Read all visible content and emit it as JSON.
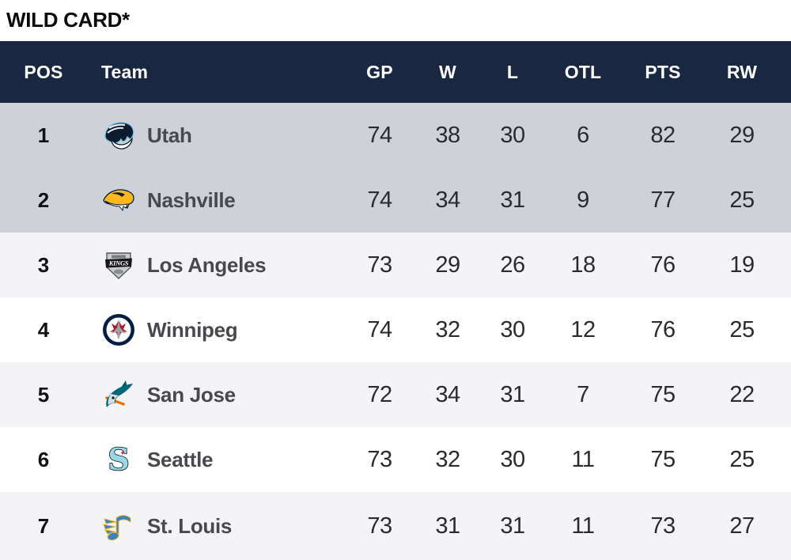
{
  "title": "WILD CARD*",
  "colors": {
    "header_bg": "#1a2740",
    "highlight_row_bg": "#ced2d8",
    "zebra_row_bg": "#f4f3f5",
    "header_text": "#ffffff",
    "team_text": "#47494c",
    "number_text": "#2b2b2d"
  },
  "table": {
    "columns": [
      "POS",
      "Team",
      "GP",
      "W",
      "L",
      "OTL",
      "PTS",
      "RW"
    ],
    "rows": [
      {
        "pos": "1",
        "team": "Utah",
        "logo": "utah-mammoth-logo",
        "gp": "74",
        "w": "38",
        "l": "30",
        "otl": "6",
        "pts": "82",
        "rw": "29",
        "highlighted": true
      },
      {
        "pos": "2",
        "team": "Nashville",
        "logo": "nashville-predators-logo",
        "gp": "74",
        "w": "34",
        "l": "31",
        "otl": "9",
        "pts": "77",
        "rw": "25",
        "highlighted": true
      },
      {
        "pos": "3",
        "team": "Los Angeles",
        "logo": "la-kings-logo",
        "gp": "73",
        "w": "29",
        "l": "26",
        "otl": "18",
        "pts": "76",
        "rw": "19",
        "highlighted": false
      },
      {
        "pos": "4",
        "team": "Winnipeg",
        "logo": "winnipeg-jets-logo",
        "gp": "74",
        "w": "32",
        "l": "30",
        "otl": "12",
        "pts": "76",
        "rw": "25",
        "highlighted": false
      },
      {
        "pos": "5",
        "team": "San Jose",
        "logo": "san-jose-sharks-logo",
        "gp": "72",
        "w": "34",
        "l": "31",
        "otl": "7",
        "pts": "75",
        "rw": "22",
        "highlighted": false
      },
      {
        "pos": "6",
        "team": "Seattle",
        "logo": "seattle-kraken-logo",
        "gp": "73",
        "w": "32",
        "l": "30",
        "otl": "11",
        "pts": "75",
        "rw": "25",
        "highlighted": false
      },
      {
        "pos": "7",
        "team": "St. Louis",
        "logo": "st-louis-blues-logo",
        "gp": "73",
        "w": "31",
        "l": "31",
        "otl": "11",
        "pts": "73",
        "rw": "27",
        "highlighted": false
      }
    ]
  }
}
